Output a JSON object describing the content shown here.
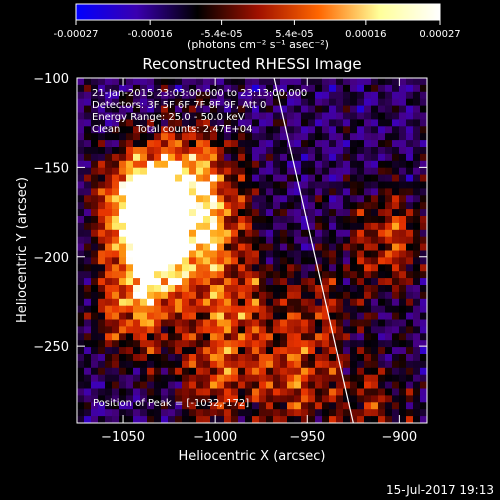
{
  "colorbar": {
    "tick_labels": [
      "-0.00027",
      "-0.00016",
      "-5.4e-05",
      "5.4e-05",
      "0.00016",
      "0.00027"
    ],
    "tick_values": [
      -0.00027,
      -0.00016,
      -5.4e-05,
      5.4e-05,
      0.00016,
      0.00027
    ],
    "range": [
      -0.00027,
      0.00027
    ],
    "units_label": "(photons cm⁻² s⁻¹ asec⁻²)",
    "colormap": [
      "#0000ff",
      "#3a00b0",
      "#000000",
      "#a01000",
      "#ff6600",
      "#ffff99",
      "#ffffff"
    ]
  },
  "chart_data": {
    "type": "heatmap",
    "title": "Reconstructed RHESSI Image",
    "xlabel": "Heliocentric X (arcsec)",
    "ylabel": "Heliocentric Y (arcsec)",
    "xlim": [
      -1075,
      -885
    ],
    "ylim": [
      -293,
      -100
    ],
    "xticks": [
      -1050,
      -1000,
      -950,
      -900
    ],
    "yticks": [
      -100,
      -150,
      -200,
      -250
    ],
    "xtick_labels": [
      "−1050",
      "−1000",
      "−950",
      "−900"
    ],
    "ytick_labels": [
      "−100",
      "−150",
      "−200",
      "−250"
    ],
    "limb_line": {
      "x": [
        -968,
        -925
      ],
      "y": [
        -100,
        -293
      ],
      "color": "#ffffff"
    },
    "bright_regions": [
      {
        "x": -1042,
        "y": -170,
        "strength": 1.0
      },
      {
        "x": -1030,
        "y": -200,
        "strength": 0.95
      },
      {
        "x": -1032,
        "y": -172,
        "strength": 1.0
      },
      {
        "x": -1045,
        "y": -230,
        "strength": 0.8
      },
      {
        "x": -1000,
        "y": -185,
        "strength": 0.75
      },
      {
        "x": -990,
        "y": -230,
        "strength": 0.7
      },
      {
        "x": -1010,
        "y": -150,
        "strength": 0.7
      },
      {
        "x": -1000,
        "y": -270,
        "strength": 0.65
      },
      {
        "x": -958,
        "y": -270,
        "strength": 0.7
      },
      {
        "x": -905,
        "y": -190,
        "strength": 0.75
      },
      {
        "x": -945,
        "y": -230,
        "strength": 0.5
      },
      {
        "x": -915,
        "y": -285,
        "strength": 0.55
      }
    ],
    "grid": false
  },
  "annotations": {
    "time_range": "21-Jan-2015 23:03:00.000 to 23:13:00.000",
    "detectors": "Detectors: 3F 5F 6F 7F 8F 9F, Att 0",
    "energy_range": "Energy Range: 25.0 - 50.0 keV",
    "method_counts": "Clean     Total counts: 2.47E+04",
    "peak_position": "Position of Peak = [-1032,-172]"
  },
  "footer": {
    "timestamp": "15-Jul-2017 19:13"
  }
}
